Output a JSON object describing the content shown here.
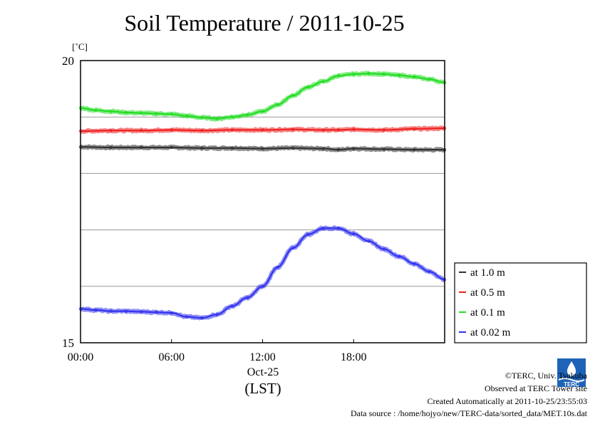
{
  "chart_data": {
    "type": "line",
    "title": "Soil Temperature / 2011-10-25",
    "ylabel": "[˚C]",
    "ylim": [
      15,
      20
    ],
    "yticks": [
      {
        "value": 20,
        "label": "20"
      },
      {
        "value": 15,
        "label": "15"
      }
    ],
    "y_gridlines": [
      16,
      17,
      18,
      19
    ],
    "xlim_hours": [
      0,
      24
    ],
    "xticks": [
      {
        "hour": 0,
        "label": "00:00"
      },
      {
        "hour": 6,
        "label": "06:00"
      },
      {
        "hour": 12,
        "label": "12:00"
      },
      {
        "hour": 18,
        "label": "18:00"
      }
    ],
    "xdate_label": "Oct-25",
    "xunit_label": "(LST)",
    "legend_position": "right, lower",
    "series": [
      {
        "name": "at 1.0 m",
        "color": "#333333",
        "x": [
          0,
          2,
          4,
          6,
          8,
          10,
          12,
          14,
          16,
          17,
          18,
          20,
          22,
          24
        ],
        "y": [
          18.47,
          18.46,
          18.46,
          18.46,
          18.45,
          18.45,
          18.44,
          18.45,
          18.44,
          18.42,
          18.44,
          18.43,
          18.42,
          18.42
        ]
      },
      {
        "name": "at 0.5 m",
        "color": "#ee2222",
        "x": [
          0,
          2,
          4,
          6,
          8,
          10,
          12,
          14,
          16,
          17,
          18,
          20,
          22,
          24
        ],
        "y": [
          18.75,
          18.76,
          18.76,
          18.77,
          18.76,
          18.77,
          18.77,
          18.78,
          18.77,
          18.77,
          18.78,
          18.77,
          18.79,
          18.8
        ]
      },
      {
        "name": "at 0.1 m",
        "color": "#22dd22",
        "x": [
          0,
          1,
          2,
          3,
          4,
          5,
          6,
          7,
          8,
          9,
          10,
          11,
          12,
          13,
          14,
          15,
          16,
          17,
          18,
          19,
          20,
          21,
          22,
          23,
          24
        ],
        "y": [
          19.16,
          19.12,
          19.1,
          19.08,
          19.07,
          19.06,
          19.05,
          19.02,
          18.99,
          18.97,
          19.0,
          19.04,
          19.1,
          19.22,
          19.38,
          19.53,
          19.63,
          19.73,
          19.76,
          19.77,
          19.76,
          19.74,
          19.71,
          19.67,
          19.61
        ]
      },
      {
        "name": "at 0.02 m",
        "color": "#3333ee",
        "x": [
          0,
          1,
          2,
          3,
          4,
          5,
          6,
          7,
          8,
          9,
          10,
          11,
          12,
          13,
          14,
          15,
          16,
          17,
          18,
          19,
          20,
          21,
          22,
          23,
          24
        ],
        "y": [
          15.6,
          15.58,
          15.56,
          15.56,
          15.55,
          15.54,
          15.53,
          15.46,
          15.44,
          15.5,
          15.65,
          15.8,
          16.0,
          16.34,
          16.68,
          16.92,
          17.03,
          17.03,
          16.93,
          16.8,
          16.66,
          16.53,
          16.4,
          16.26,
          16.12
        ]
      }
    ]
  },
  "credits": {
    "copyright": "©TERC, Univ. Tsukuba",
    "observed": "Observed at TERC Tower site",
    "created": "Created Automatically at 2011-10-25/23:55:03",
    "source": "Data source : /home/hojyo/new/TERC-data/sorted_data/MET.10s.dat",
    "logo_text": "TERC"
  }
}
